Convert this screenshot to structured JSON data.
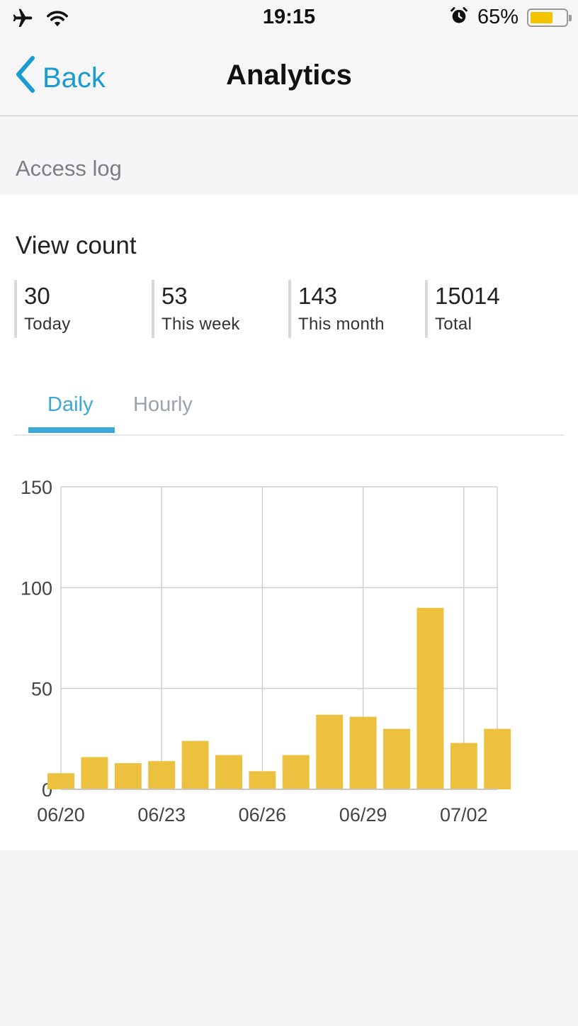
{
  "status_bar": {
    "time": "19:15",
    "battery_percent": "65%",
    "battery_level": 0.65,
    "icons": [
      "airplane-icon",
      "wifi-icon",
      "alarm-icon",
      "battery-icon"
    ]
  },
  "nav": {
    "back_label": "Back",
    "title": "Analytics"
  },
  "section": {
    "header": "Access log"
  },
  "card": {
    "title": "View count",
    "stats": [
      {
        "value": "30",
        "label": "Today"
      },
      {
        "value": "53",
        "label": "This week"
      },
      {
        "value": "143",
        "label": "This month"
      },
      {
        "value": "15014",
        "label": "Total"
      }
    ]
  },
  "tabs": [
    {
      "label": "Daily",
      "active": true
    },
    {
      "label": "Hourly",
      "active": false
    }
  ],
  "colors": {
    "accent": "#3da8d3",
    "back_blue": "#1a9cd0",
    "bar": "#ecc13f",
    "grid": "#cfcfcf"
  },
  "chart_data": {
    "type": "bar",
    "categories": [
      "06/20",
      "06/21",
      "06/22",
      "06/23",
      "06/24",
      "06/25",
      "06/26",
      "06/27",
      "06/28",
      "06/29",
      "06/30",
      "07/01",
      "07/02",
      "07/03"
    ],
    "values": [
      8,
      16,
      13,
      14,
      24,
      17,
      9,
      17,
      37,
      36,
      30,
      90,
      23,
      30
    ],
    "x_tick_labels": [
      "06/20",
      "06/23",
      "06/26",
      "06/29",
      "07/02"
    ],
    "y_ticks": [
      0,
      50,
      100,
      150
    ],
    "ylim": [
      0,
      150
    ],
    "title": "",
    "xlabel": "",
    "ylabel": "",
    "grid": true,
    "legend": "none"
  }
}
